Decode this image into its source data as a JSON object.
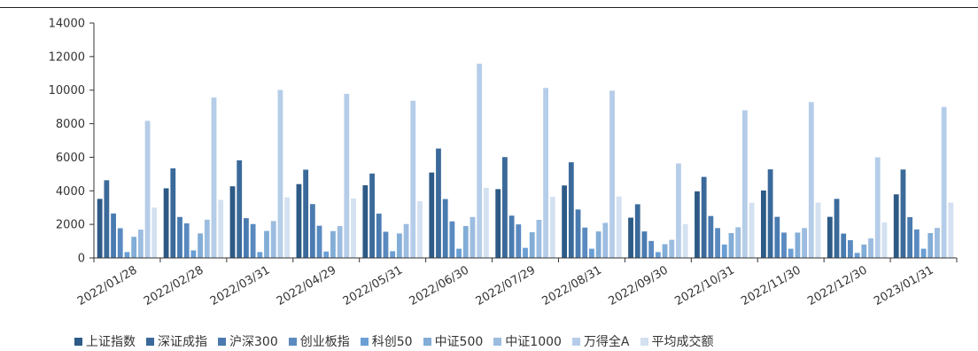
{
  "chart_data": {
    "type": "bar",
    "title": "",
    "xlabel": "",
    "ylabel": "",
    "ylim": [
      0,
      14000
    ],
    "yticks": [
      "0",
      "2000",
      "4000",
      "6000",
      "8000",
      "10000",
      "12000",
      "14000"
    ],
    "grid": false,
    "legend_position": "bottom",
    "categories": [
      "2022/01/28",
      "2022/02/28",
      "2022/03/31",
      "2022/04/29",
      "2022/05/31",
      "2022/06/30",
      "2022/07/29",
      "2022/08/31",
      "2022/09/30",
      "2022/10/31",
      "2022/11/30",
      "2022/12/30",
      "2023/01/31"
    ],
    "series": [
      {
        "name": "上证指数",
        "color": "#2d5a86",
        "values": [
          3520,
          4150,
          4270,
          4400,
          4330,
          5090,
          4100,
          4320,
          2400,
          3970,
          4020,
          2450,
          3790
        ]
      },
      {
        "name": "深证成指",
        "color": "#3b6a9a",
        "values": [
          4630,
          5340,
          5820,
          5260,
          5030,
          6520,
          6010,
          5700,
          3200,
          4830,
          5280,
          3520,
          5270
        ]
      },
      {
        "name": "沪深300",
        "color": "#4a7bb0",
        "values": [
          2650,
          2440,
          2370,
          3210,
          2640,
          3510,
          2520,
          2890,
          1580,
          2500,
          2450,
          1450,
          2430
        ]
      },
      {
        "name": "创业板指",
        "color": "#5a8ac0",
        "values": [
          1770,
          2060,
          2020,
          1920,
          1560,
          2180,
          2000,
          1810,
          1010,
          1780,
          1510,
          1060,
          1700
        ]
      },
      {
        "name": "科创50",
        "color": "#6a9ed4",
        "values": [
          350,
          450,
          350,
          380,
          400,
          550,
          600,
          550,
          350,
          800,
          550,
          300,
          550
        ]
      },
      {
        "name": "中证500",
        "color": "#82add6",
        "values": [
          1260,
          1460,
          1610,
          1600,
          1460,
          1900,
          1530,
          1580,
          820,
          1480,
          1510,
          800,
          1480
        ]
      },
      {
        "name": "中证1000",
        "color": "#9cbde0",
        "values": [
          1690,
          2280,
          2200,
          1900,
          2020,
          2440,
          2270,
          2090,
          1080,
          1830,
          1780,
          1170,
          1790
        ]
      },
      {
        "name": "万得全A",
        "color": "#b5cde8",
        "values": [
          8170,
          9560,
          10010,
          9780,
          9370,
          11580,
          10130,
          9970,
          5630,
          8800,
          9290,
          6000,
          9000
        ]
      },
      {
        "name": "平均成交额",
        "color": "#d3e1f1",
        "values": [
          3000,
          3460,
          3610,
          3540,
          3380,
          4180,
          3640,
          3660,
          2020,
          3290,
          3300,
          2120,
          3300
        ]
      }
    ]
  }
}
